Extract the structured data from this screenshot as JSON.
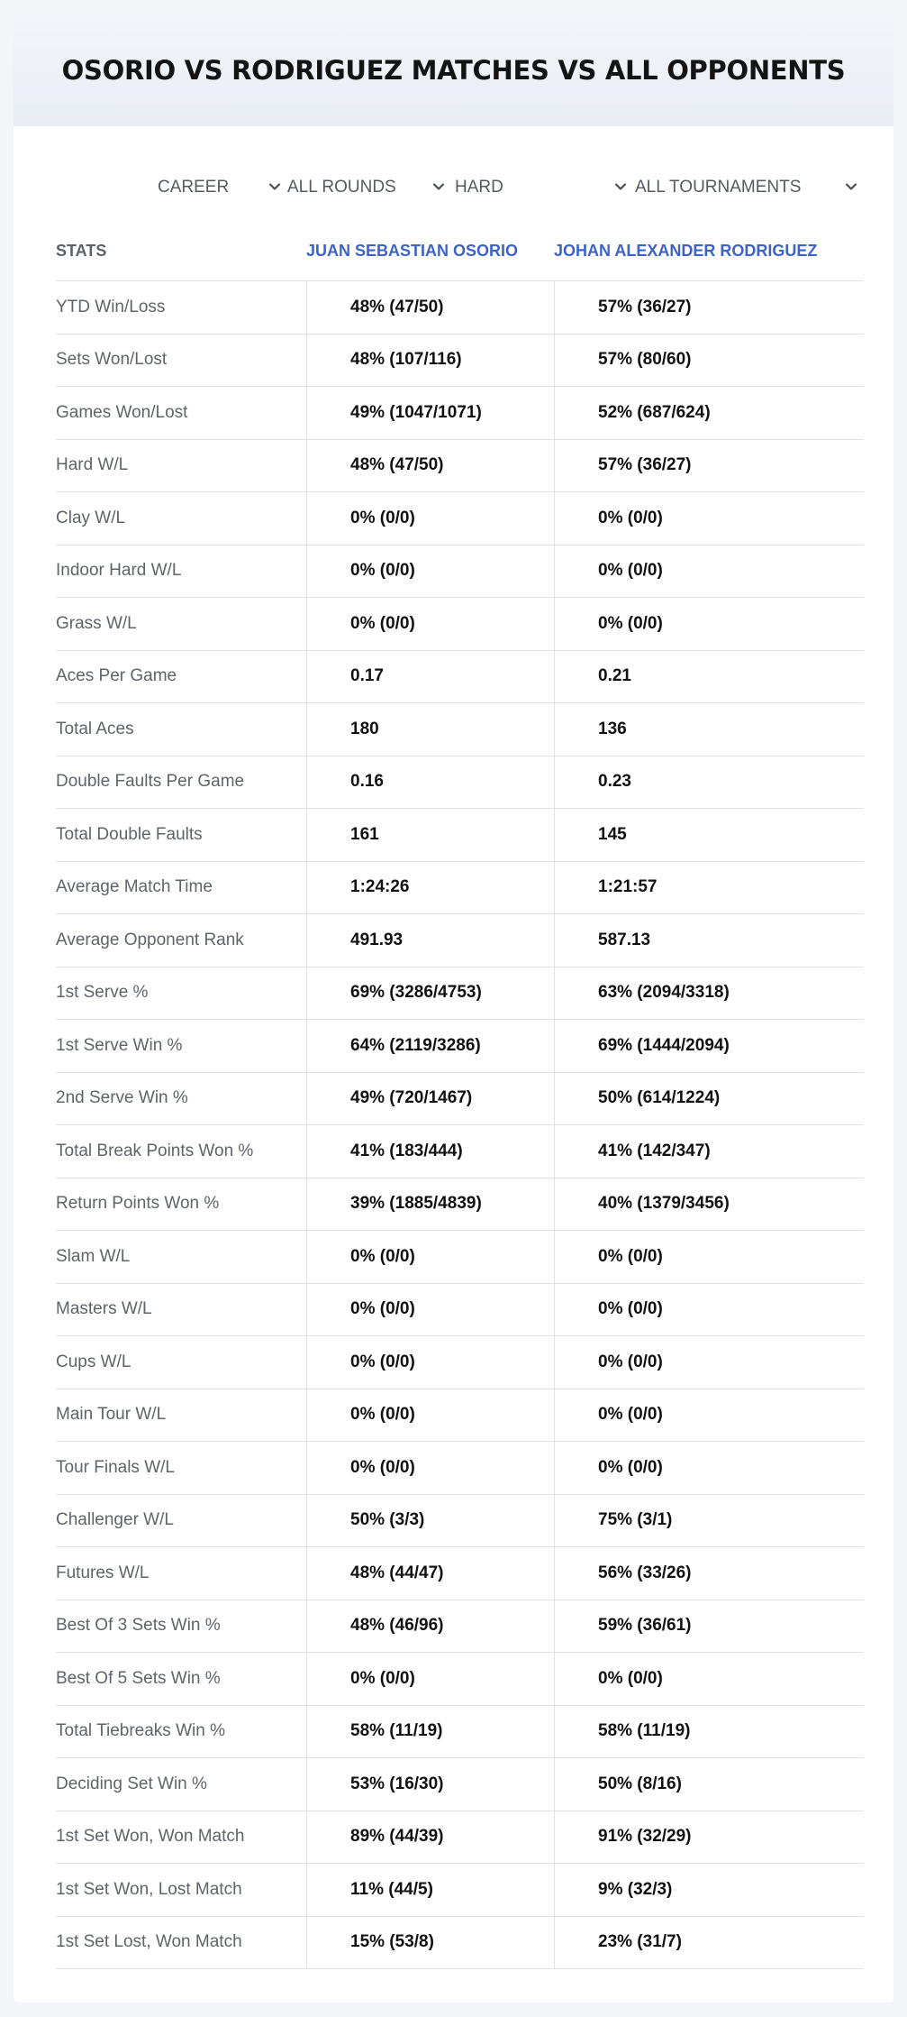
{
  "title": "OSORIO VS RODRIGUEZ MATCHES VS ALL OPPONENTS",
  "filters": {
    "period": "CAREER",
    "rounds": "ALL ROUNDS",
    "surface": "HARD",
    "tournaments": "ALL TOURNAMENTS"
  },
  "table": {
    "headers": {
      "stats": "STATS",
      "player1": "JUAN SEBASTIAN OSORIO",
      "player2": "JOHAN ALEXANDER RODRIGUEZ"
    },
    "rows": [
      {
        "label": "YTD Win/Loss",
        "p1": "48% (47/50)",
        "p2": "57% (36/27)"
      },
      {
        "label": "Sets Won/Lost",
        "p1": "48% (107/116)",
        "p2": "57% (80/60)"
      },
      {
        "label": "Games Won/Lost",
        "p1": "49% (1047/1071)",
        "p2": "52% (687/624)"
      },
      {
        "label": "Hard W/L",
        "p1": "48% (47/50)",
        "p2": "57% (36/27)"
      },
      {
        "label": "Clay W/L",
        "p1": "0% (0/0)",
        "p2": "0% (0/0)"
      },
      {
        "label": "Indoor Hard W/L",
        "p1": "0% (0/0)",
        "p2": "0% (0/0)"
      },
      {
        "label": "Grass W/L",
        "p1": "0% (0/0)",
        "p2": "0% (0/0)"
      },
      {
        "label": "Aces Per Game",
        "p1": "0.17",
        "p2": "0.21"
      },
      {
        "label": "Total Aces",
        "p1": "180",
        "p2": "136"
      },
      {
        "label": "Double Faults Per Game",
        "p1": "0.16",
        "p2": "0.23"
      },
      {
        "label": "Total Double Faults",
        "p1": "161",
        "p2": "145"
      },
      {
        "label": "Average Match Time",
        "p1": "1:24:26",
        "p2": "1:21:57"
      },
      {
        "label": "Average Opponent Rank",
        "p1": "491.93",
        "p2": "587.13"
      },
      {
        "label": "1st Serve %",
        "p1": "69% (3286/4753)",
        "p2": "63% (2094/3318)"
      },
      {
        "label": "1st Serve Win %",
        "p1": "64% (2119/3286)",
        "p2": "69% (1444/2094)"
      },
      {
        "label": "2nd Serve Win %",
        "p1": "49% (720/1467)",
        "p2": "50% (614/1224)"
      },
      {
        "label": "Total Break Points Won %",
        "p1": "41% (183/444)",
        "p2": "41% (142/347)"
      },
      {
        "label": "Return Points Won %",
        "p1": "39% (1885/4839)",
        "p2": "40% (1379/3456)"
      },
      {
        "label": "Slam W/L",
        "p1": "0% (0/0)",
        "p2": "0% (0/0)"
      },
      {
        "label": "Masters W/L",
        "p1": "0% (0/0)",
        "p2": "0% (0/0)"
      },
      {
        "label": "Cups W/L",
        "p1": "0% (0/0)",
        "p2": "0% (0/0)"
      },
      {
        "label": "Main Tour W/L",
        "p1": "0% (0/0)",
        "p2": "0% (0/0)"
      },
      {
        "label": "Tour Finals W/L",
        "p1": "0% (0/0)",
        "p2": "0% (0/0)"
      },
      {
        "label": "Challenger W/L",
        "p1": "50% (3/3)",
        "p2": "75% (3/1)"
      },
      {
        "label": "Futures W/L",
        "p1": "48% (44/47)",
        "p2": "56% (33/26)"
      },
      {
        "label": "Best Of 3 Sets Win %",
        "p1": "48% (46/96)",
        "p2": "59% (36/61)"
      },
      {
        "label": "Best Of 5 Sets Win %",
        "p1": "0% (0/0)",
        "p2": "0% (0/0)"
      },
      {
        "label": "Total Tiebreaks Win %",
        "p1": "58% (11/19)",
        "p2": "58% (11/19)"
      },
      {
        "label": "Deciding Set Win %",
        "p1": "53% (16/30)",
        "p2": "50% (8/16)"
      },
      {
        "label": "1st Set Won, Won Match",
        "p1": "89% (44/39)",
        "p2": "91% (32/29)"
      },
      {
        "label": "1st Set Won, Lost Match",
        "p1": "11% (44/5)",
        "p2": "9% (32/3)"
      },
      {
        "label": "1st Set Lost, Won Match",
        "p1": "15% (53/8)",
        "p2": "23% (31/7)"
      }
    ]
  },
  "colors": {
    "accent": "#3d63c9",
    "header_bg": "#eaeff5",
    "divider": "#dfe3e8"
  },
  "icons": {
    "dropdown": "chevron-down-icon"
  }
}
